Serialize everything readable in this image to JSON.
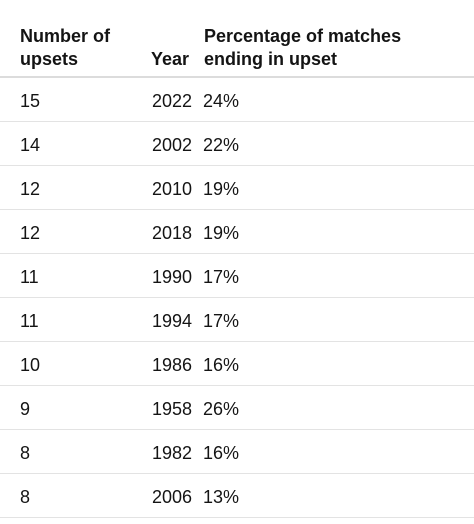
{
  "table": {
    "headers": {
      "upsets_line1": "Number of",
      "upsets_line2": "upsets",
      "year": "Year",
      "pct_line1": "Percentage of matches",
      "pct_line2": "ending in upset"
    },
    "rows": [
      {
        "upsets": "15",
        "year": "2022",
        "pct": "24%"
      },
      {
        "upsets": "14",
        "year": "2002",
        "pct": "22%"
      },
      {
        "upsets": "12",
        "year": "2010",
        "pct": "19%"
      },
      {
        "upsets": "12",
        "year": "2018",
        "pct": "19%"
      },
      {
        "upsets": "11",
        "year": "1990",
        "pct": "17%"
      },
      {
        "upsets": "11",
        "year": "1994",
        "pct": "17%"
      },
      {
        "upsets": "10",
        "year": "1986",
        "pct": "16%"
      },
      {
        "upsets": "9",
        "year": "1958",
        "pct": "26%"
      },
      {
        "upsets": "8",
        "year": "1982",
        "pct": "16%"
      },
      {
        "upsets": "8",
        "year": "2006",
        "pct": "13%"
      }
    ]
  }
}
